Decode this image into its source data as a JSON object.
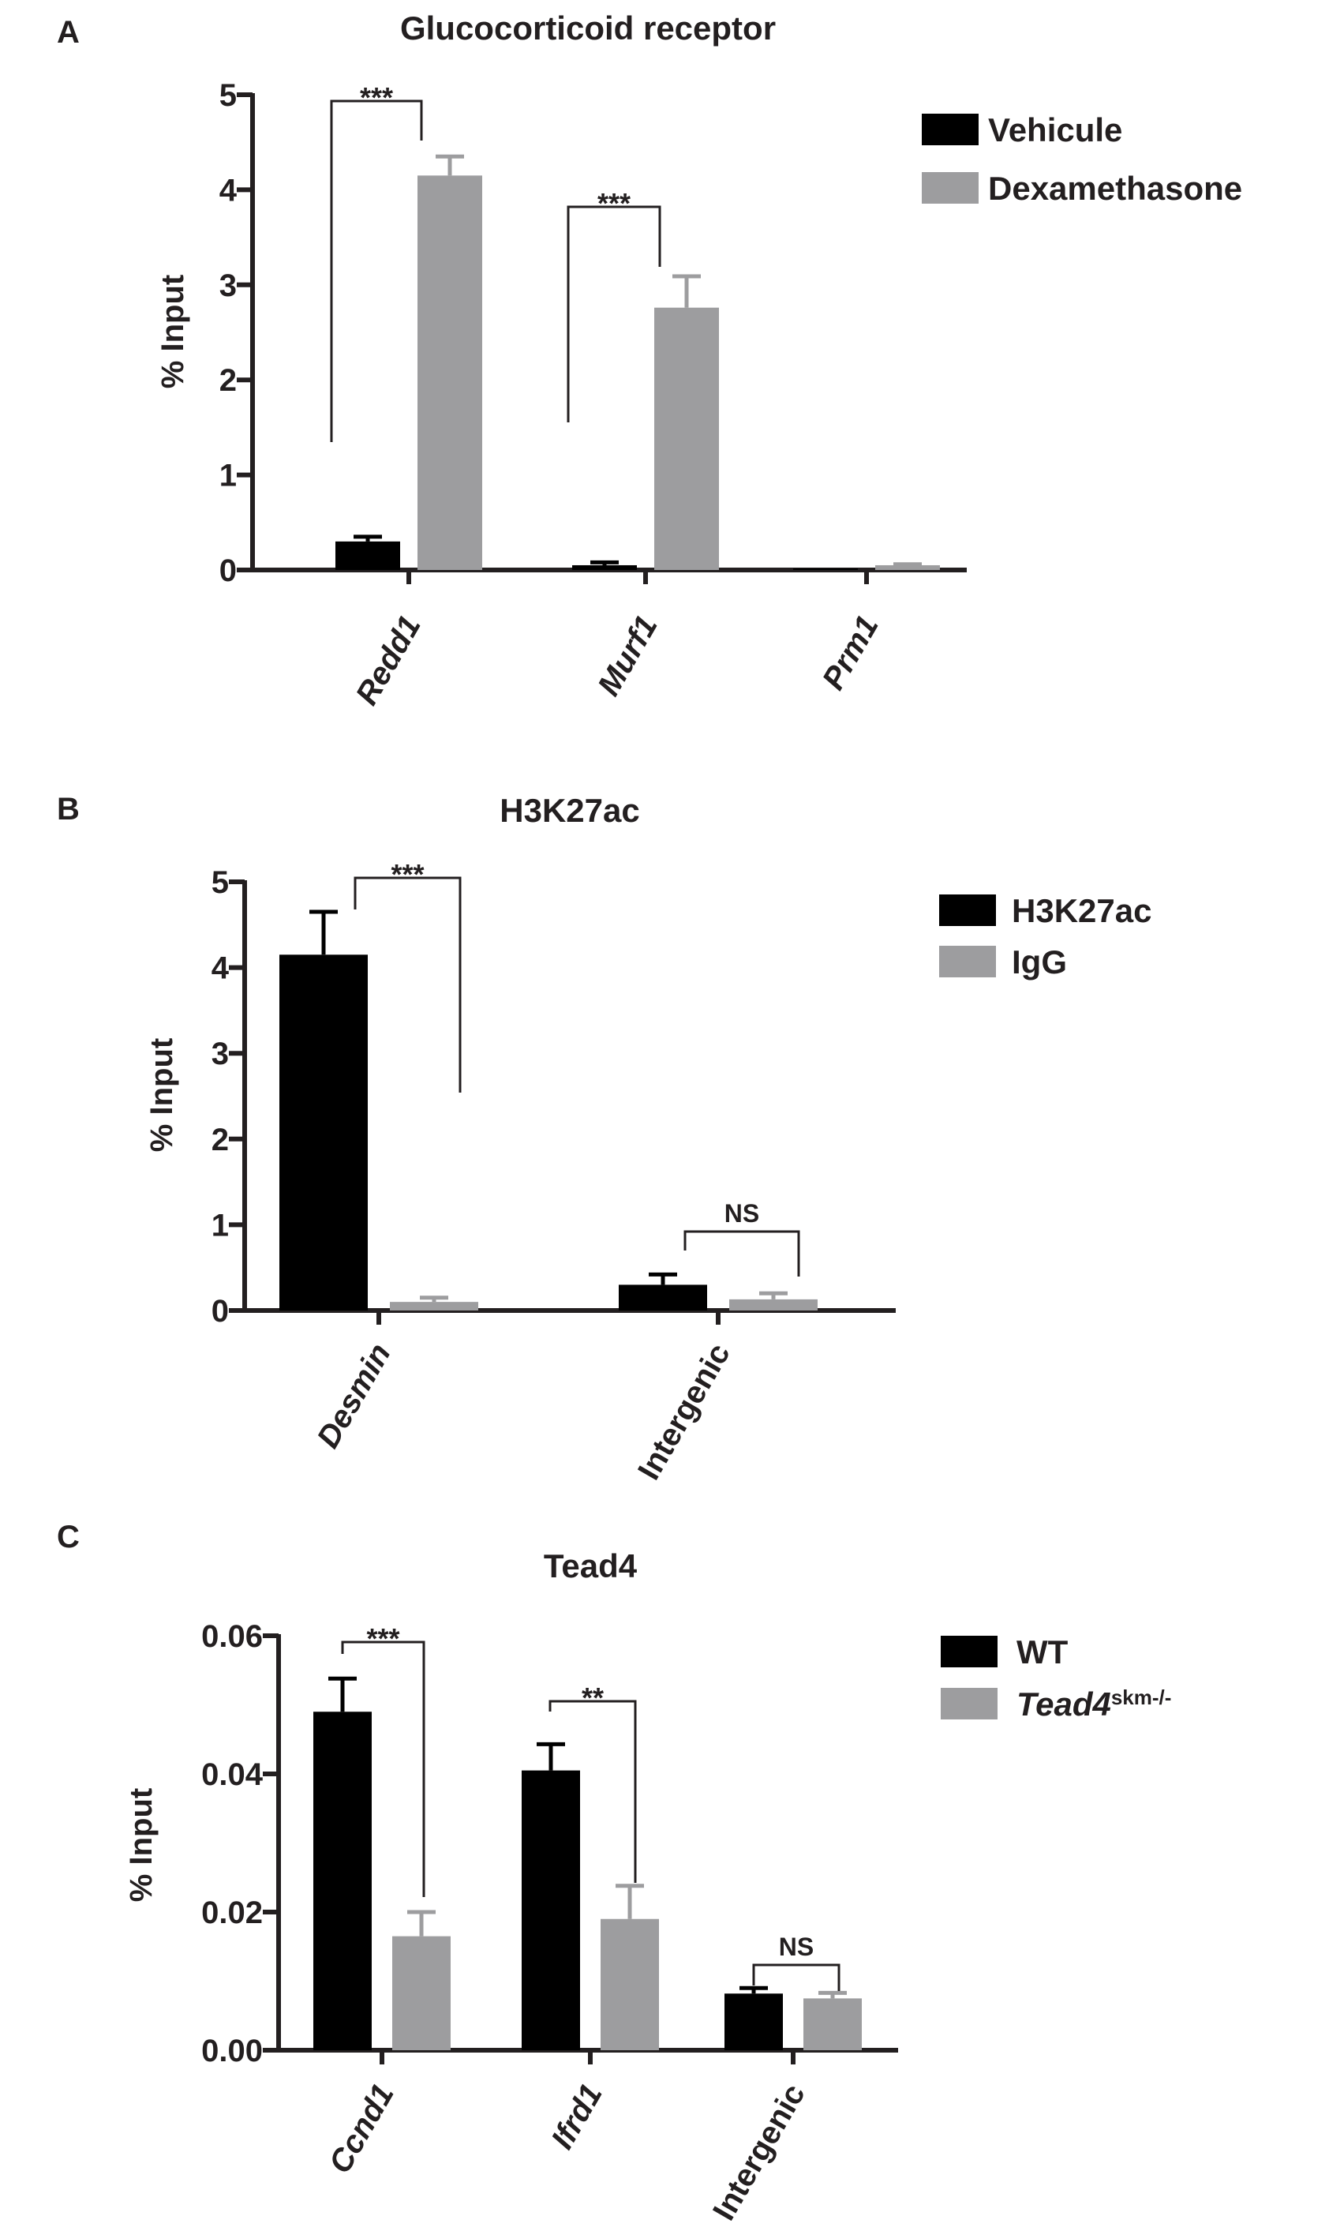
{
  "chart_data": [
    {
      "panel": "A",
      "type": "bar",
      "title": "Glucocorticoid receptor",
      "xlabel": "",
      "ylabel": "% Input",
      "ylim": [
        0,
        5
      ],
      "yticks": [
        "0",
        "1",
        "2",
        "3",
        "4",
        "5"
      ],
      "categories": [
        "Redd1",
        "Murf1",
        "Prm1"
      ],
      "categories_italic": true,
      "series": [
        {
          "name": "Vehicule",
          "color": "#000000",
          "values": [
            0.3,
            0.05,
            0.01
          ],
          "errors": [
            0.05,
            0.03,
            0.0
          ]
        },
        {
          "name": "Dexamethasone",
          "color": "#9d9d9f",
          "values": [
            4.15,
            2.76,
            0.05
          ],
          "errors": [
            0.2,
            0.33,
            0.01
          ]
        }
      ],
      "significance": [
        {
          "label": "***",
          "category": 0
        },
        {
          "label": "***",
          "category": 1
        }
      ],
      "legend_position": "top-right",
      "grid": false
    },
    {
      "panel": "B",
      "type": "bar",
      "title": "H3K27ac",
      "xlabel": "",
      "ylabel": "% Input",
      "ylim": [
        0,
        5
      ],
      "yticks": [
        "0",
        "1",
        "2",
        "3",
        "4",
        "5"
      ],
      "categories": [
        "Desmin",
        "Intergenic"
      ],
      "categories_italic": [
        true,
        false
      ],
      "series": [
        {
          "name": "H3K27ac",
          "color": "#000000",
          "values": [
            4.15,
            0.3
          ],
          "errors": [
            0.5,
            0.12
          ]
        },
        {
          "name": "IgG",
          "color": "#9d9d9f",
          "values": [
            0.1,
            0.13
          ],
          "errors": [
            0.05,
            0.07
          ]
        }
      ],
      "significance": [
        {
          "label": "***",
          "category": 0
        },
        {
          "label": "NS",
          "category": 1
        }
      ],
      "legend_position": "top-right",
      "grid": false
    },
    {
      "panel": "C",
      "type": "bar",
      "title": "Tead4",
      "xlabel": "",
      "ylabel": "% Input",
      "ylim": [
        0,
        0.06
      ],
      "yticks": [
        "0.00",
        "0.02",
        "0.04",
        "0.06"
      ],
      "categories": [
        "Ccnd1",
        "Ifrd1",
        "Intergenic"
      ],
      "categories_italic": [
        true,
        true,
        false
      ],
      "series": [
        {
          "name": "WT",
          "color": "#000000",
          "values": [
            0.049,
            0.0405,
            0.0082
          ],
          "errors": [
            0.0048,
            0.0038,
            0.0008
          ]
        },
        {
          "name": "Tead4",
          "name_superscript": "skm-/-",
          "name_italic": true,
          "color": "#9d9d9f",
          "values": [
            0.0165,
            0.019,
            0.0075
          ],
          "errors": [
            0.0035,
            0.0048,
            0.0008
          ]
        }
      ],
      "significance": [
        {
          "label": "***",
          "category": 0
        },
        {
          "label": "**",
          "category": 1
        },
        {
          "label": "NS",
          "category": 2
        }
      ],
      "legend_position": "top-right",
      "grid": false
    }
  ]
}
